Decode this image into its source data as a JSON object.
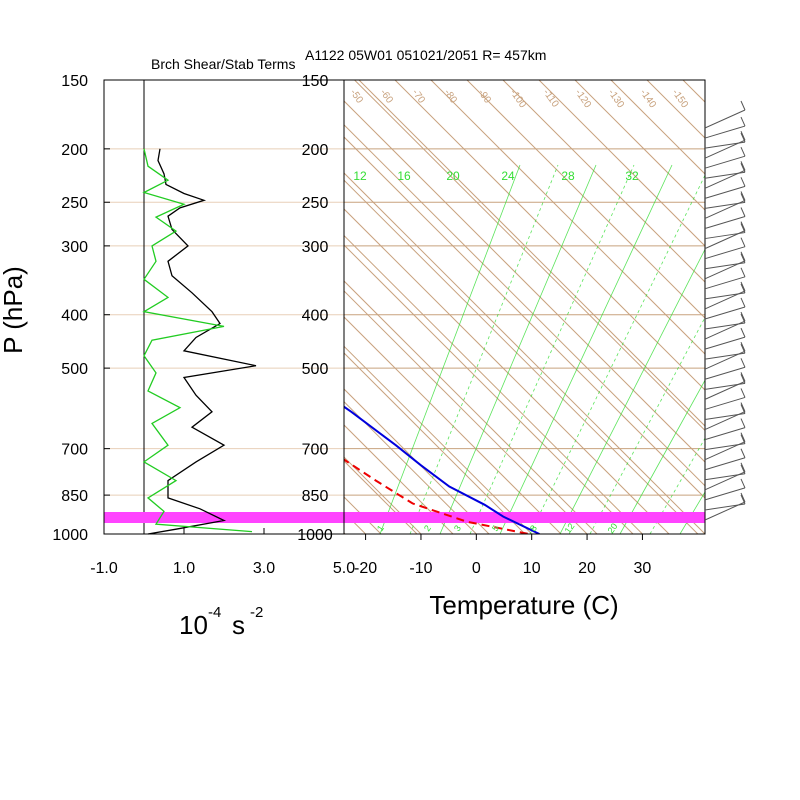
{
  "header": {
    "left_title": "Brch Shear/Stab Terms",
    "right_title": "A1122 05W01 051021/2051 R= 457km"
  },
  "colors": {
    "isotherm": "#c8a27e",
    "mixing_ratio": "#33dd33",
    "temperature": "#0000dd",
    "dewpoint": "#ee0000",
    "shear_line": "#000000",
    "stab_line": "#11dd11",
    "surface_band": "#ff44ff",
    "frame": "#000000",
    "wind_barb": "#555555"
  },
  "chart_data": [
    {
      "type": "line",
      "title": "Brch Shear/Stab Terms",
      "xlabel_base": "10",
      "xlabel_exp1": "-4",
      "xlabel_unit": "s",
      "xlabel_exp2": "-2",
      "ylabel": "P (hPa)",
      "xlim": [
        -1.0,
        5.0
      ],
      "xticks": [
        "-1.0",
        "1.0",
        "3.0",
        "5.0"
      ],
      "pressure_ticks": [
        "150",
        "200",
        "250",
        "300",
        "400",
        "500",
        "700",
        "850",
        "1000"
      ],
      "series": [
        {
          "color": "#000000",
          "points": [
            [
              0.4,
              200
            ],
            [
              0.35,
              210
            ],
            [
              0.5,
              222
            ],
            [
              0.55,
              232
            ],
            [
              1.0,
              241
            ],
            [
              1.5,
              248
            ],
            [
              0.9,
              256
            ],
            [
              0.6,
              265
            ],
            [
              0.7,
              280
            ],
            [
              1.1,
              300
            ],
            [
              0.6,
              320
            ],
            [
              0.7,
              340
            ],
            [
              1.2,
              365
            ],
            [
              1.7,
              395
            ],
            [
              1.9,
              415
            ],
            [
              1.3,
              440
            ],
            [
              1.0,
              465
            ],
            [
              2.8,
              495
            ],
            [
              1.0,
              520
            ],
            [
              1.3,
              560
            ],
            [
              1.7,
              600
            ],
            [
              1.2,
              640
            ],
            [
              2.0,
              690
            ],
            [
              1.3,
              740
            ],
            [
              0.6,
              800
            ],
            [
              0.6,
              860
            ],
            [
              1.4,
              900
            ],
            [
              2.0,
              945
            ],
            [
              0.8,
              980
            ],
            [
              0.1,
              1000
            ]
          ]
        },
        {
          "color": "#22cc22",
          "points": [
            [
              0.0,
              200
            ],
            [
              0.1,
              215
            ],
            [
              0.6,
              228
            ],
            [
              0.0,
              240
            ],
            [
              1.0,
              252
            ],
            [
              0.3,
              266
            ],
            [
              0.8,
              282
            ],
            [
              0.2,
              300
            ],
            [
              0.3,
              320
            ],
            [
              0.0,
              345
            ],
            [
              0.6,
              372
            ],
            [
              0.0,
              395
            ],
            [
              2.0,
              420
            ],
            [
              0.2,
              445
            ],
            [
              0.0,
              475
            ],
            [
              0.3,
              510
            ],
            [
              0.1,
              550
            ],
            [
              0.9,
              590
            ],
            [
              0.2,
              630
            ],
            [
              0.6,
              690
            ],
            [
              0.0,
              740
            ],
            [
              0.8,
              800
            ],
            [
              0.1,
              860
            ],
            [
              0.5,
              910
            ],
            [
              0.3,
              960
            ],
            [
              2.7,
              990
            ]
          ]
        }
      ]
    },
    {
      "type": "line",
      "title": "A1122 05W01 051021/2051 R= 457km",
      "xlabel": "Temperature (C)",
      "ylabel": "",
      "xlim": [
        -23.9,
        41.3
      ],
      "xticks": [
        "-20",
        "-10",
        "0",
        "10",
        "20",
        "30"
      ],
      "pressure_ticks": [
        "150",
        "200",
        "250",
        "300",
        "400",
        "500",
        "700",
        "850",
        "1000"
      ],
      "skew_isotherm_labels": [
        "-50",
        "-60",
        "-70",
        "-80",
        "-90",
        "-100",
        "-110",
        "-120",
        "-130",
        "-140",
        "-150"
      ],
      "mixing_ratio_labels": [
        "12",
        "16",
        "20",
        "24",
        "28",
        "32"
      ],
      "mixing_ratio_bottom_labels": [
        "1",
        "2",
        "3",
        "5",
        "8",
        "12",
        "20"
      ],
      "series": [
        {
          "name": "Temperature",
          "color": "#0000dd",
          "style": "solid",
          "points": [
            [
              -18.4,
              200
            ],
            [
              -16.0,
              225
            ],
            [
              -14.0,
              250
            ],
            [
              -12.0,
              285
            ],
            [
              -10.5,
              315
            ],
            [
              -8.7,
              350
            ],
            [
              -8.0,
              375
            ],
            [
              -7.2,
              400
            ],
            [
              -6.0,
              450
            ],
            [
              -4.0,
              500
            ],
            [
              -0.5,
              600
            ],
            [
              1.5,
              690
            ],
            [
              2.4,
              750
            ],
            [
              3.7,
              820
            ],
            [
              6.8,
              885
            ],
            [
              8.0,
              930
            ],
            [
              11.4,
              1000
            ]
          ]
        },
        {
          "name": "Dewpoint",
          "color": "#ee0000",
          "style": "dashed",
          "points": [
            [
              -34.6,
              220
            ],
            [
              -36.2,
              240
            ],
            [
              -34.0,
              260
            ],
            [
              -31.0,
              280
            ],
            [
              -60.0,
              315
            ],
            [
              -36.0,
              350
            ],
            [
              -63.0,
              370
            ],
            [
              -43.0,
              390
            ],
            [
              -37.0,
              420
            ],
            [
              -39.0,
              450
            ],
            [
              -52.0,
              485
            ],
            [
              -35.0,
              510
            ],
            [
              -27.0,
              550
            ],
            [
              -27.0,
              575
            ],
            [
              -20.0,
              590
            ],
            [
              -15.0,
              640
            ],
            [
              -11.5,
              700
            ],
            [
              -8.5,
              800
            ],
            [
              -6.0,
              880
            ],
            [
              0.5,
              950
            ],
            [
              9.5,
              1000
            ]
          ]
        }
      ]
    }
  ],
  "wind_barbs_count": 40
}
